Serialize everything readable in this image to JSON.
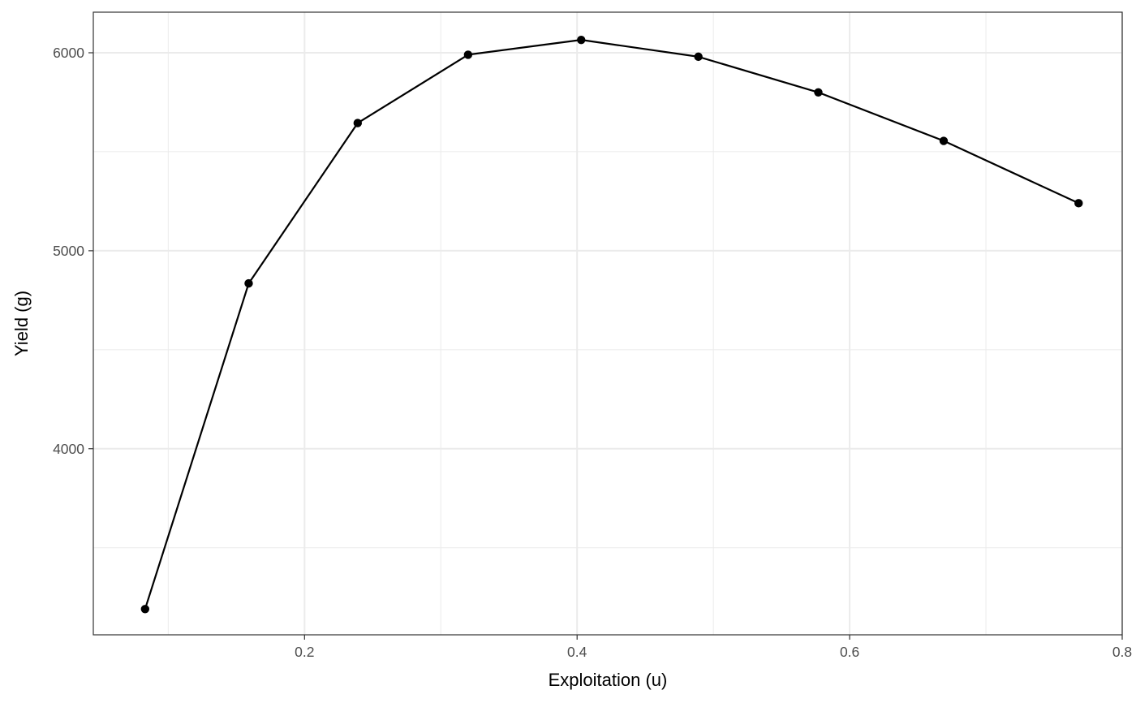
{
  "chart_data": {
    "type": "line",
    "title": "",
    "xlabel": "Exploitation (u)",
    "ylabel": "Yield (g)",
    "x": [
      0.083,
      0.159,
      0.239,
      0.32,
      0.403,
      0.489,
      0.577,
      0.669,
      0.768
    ],
    "series": [
      {
        "values": [
          3190,
          4835,
          5645,
          5990,
          6065,
          5980,
          5800,
          5555,
          5240
        ]
      }
    ],
    "xlim": [
      0.045,
      0.8
    ],
    "ylim": [
      3060,
      6205
    ],
    "x_ticks": [
      0.2,
      0.4,
      0.6,
      0.8
    ],
    "x_tick_labels": [
      "0.2",
      "0.4",
      "0.6",
      "0.8"
    ],
    "x_minor_ticks": [
      0.1,
      0.3,
      0.5,
      0.7
    ],
    "y_ticks": [
      4000,
      5000,
      6000
    ],
    "y_tick_labels": [
      "4000",
      "5000",
      "6000"
    ],
    "y_minor_ticks": [
      3500,
      4500,
      5500
    ],
    "grid": true,
    "markers": true,
    "line_color": "#000000",
    "grid_color": "#ebebeb",
    "theme": "bw"
  }
}
